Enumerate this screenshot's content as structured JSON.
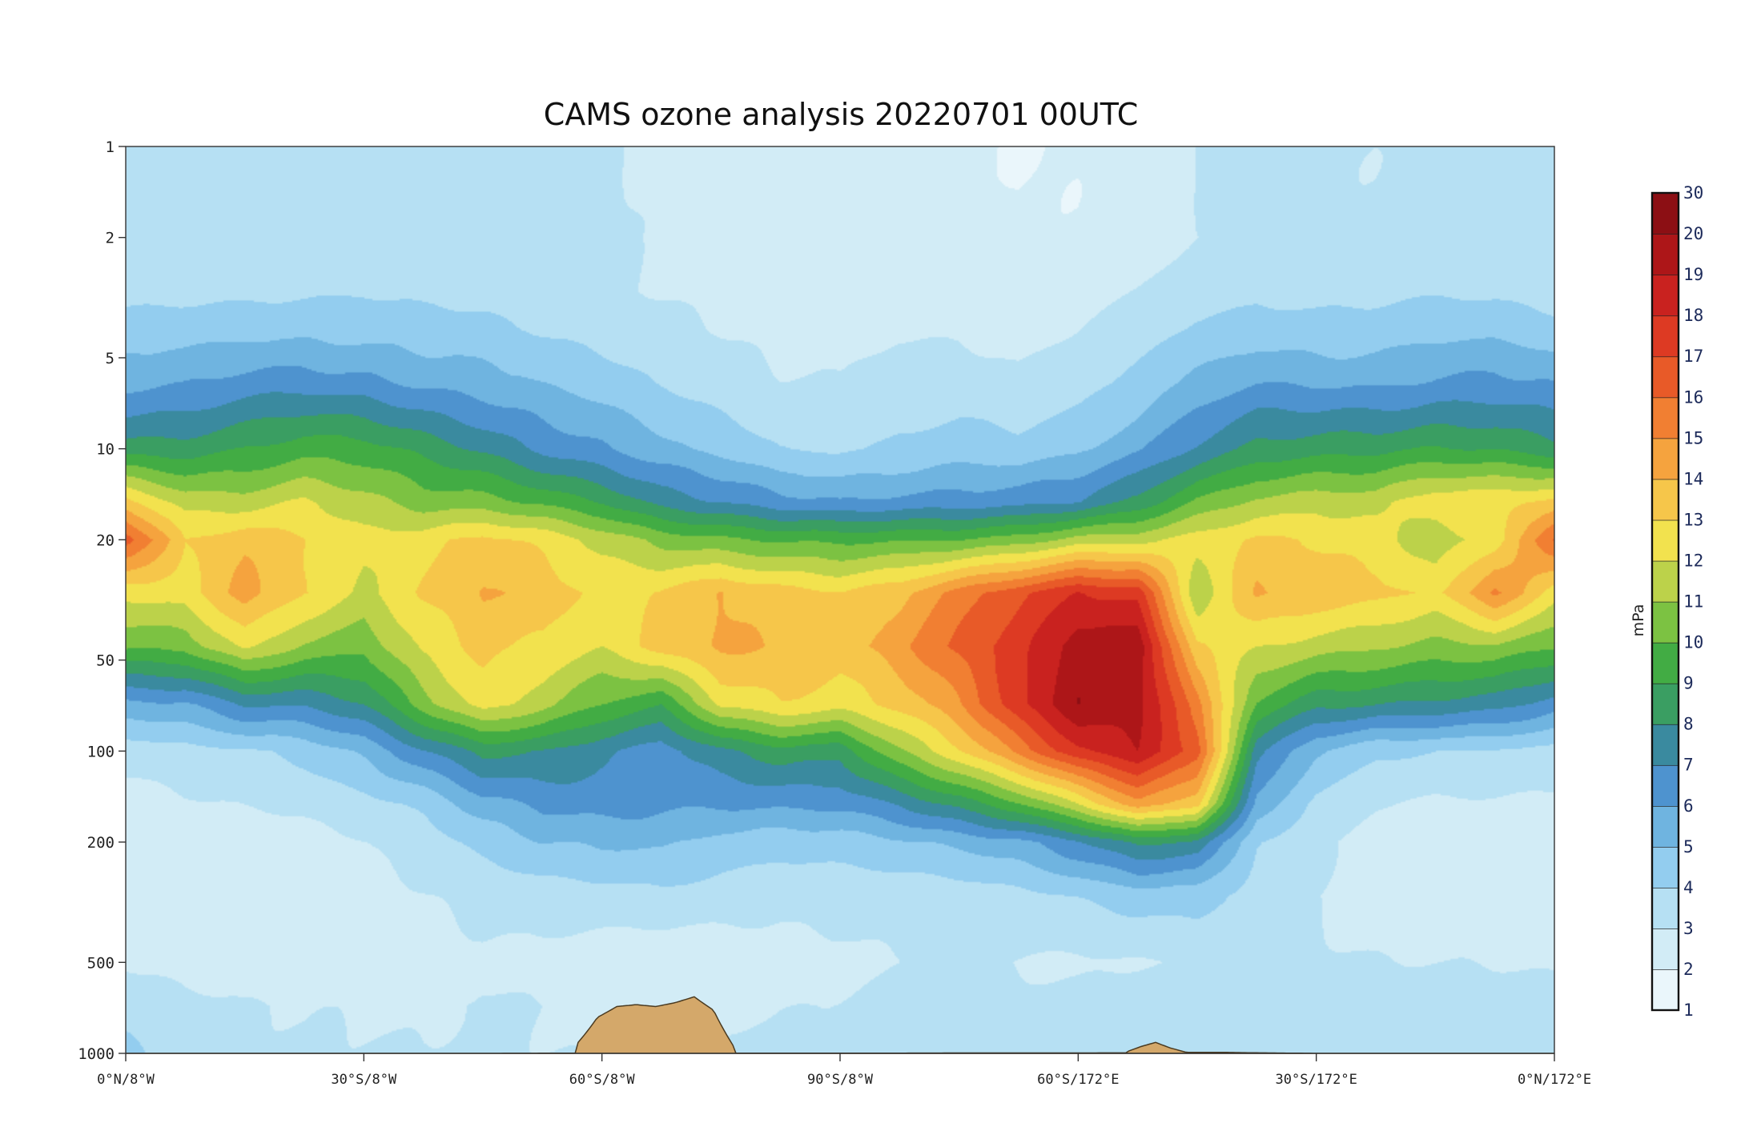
{
  "chart_data": {
    "type": "heatmap",
    "title": "CAMS ozone analysis 20220701 00UTC",
    "xlabel": "",
    "ylabel": "",
    "y_scale": "log",
    "y_inverted": true,
    "ylim": [
      1000,
      1
    ],
    "y_ticks": [
      "1",
      "2",
      "5",
      "10",
      "20",
      "50",
      "100",
      "200",
      "500",
      "1000"
    ],
    "y_tick_values": [
      1,
      2,
      5,
      10,
      20,
      50,
      100,
      200,
      500,
      1000
    ],
    "x_ticks": [
      "0°N/8°W",
      "30°S/8°W",
      "60°S/8°W",
      "90°S/8°W",
      "60°S/172°E",
      "30°S/172°E",
      "0°N/172°E"
    ],
    "grid": false,
    "colorbar": {
      "unit": "mPa",
      "levels": [
        "1",
        "2",
        "3",
        "4",
        "5",
        "6",
        "7",
        "8",
        "9",
        "10",
        "11",
        "12",
        "13",
        "14",
        "15",
        "16",
        "17",
        "18",
        "19",
        "20",
        "30"
      ],
      "colors": [
        "#eaf6fb",
        "#d2ecf6",
        "#b6e0f3",
        "#93cdef",
        "#6fb4e0",
        "#4e93cf",
        "#3a8a9f",
        "#3a9e62",
        "#42ac44",
        "#7cc242",
        "#bcd24a",
        "#f2e24e",
        "#f6c64a",
        "#f5a33e",
        "#f17f32",
        "#e85a28",
        "#dd3a23",
        "#c9221f",
        "#ad1618",
        "#8c0f14"
      ]
    },
    "topography": {
      "color": "#d4a86a",
      "pressure_profile_hpa": [
        [
          0,
          1000
        ],
        [
          6,
          1000
        ],
        [
          7,
          999
        ],
        [
          12,
          998
        ],
        [
          13,
          998
        ],
        [
          14,
          997
        ],
        [
          16,
          997
        ],
        [
          17,
          996
        ],
        [
          17.5,
          993
        ],
        [
          18,
          992
        ],
        [
          18.5,
          993
        ],
        [
          19,
          996
        ],
        [
          19.5,
          998
        ],
        [
          20,
          1000
        ],
        [
          24,
          1000
        ]
      ],
      "ridges": [
        {
          "x_from": 7.6,
          "x_to": 10.2,
          "top_hpa": [
            920,
            760,
            700,
            690,
            700,
            680,
            650,
            720,
            940
          ]
        },
        {
          "x_from": 16.8,
          "x_to": 17.8,
          "top_hpa": [
            990,
            950,
            920,
            960,
            990
          ]
        }
      ]
    },
    "field_mpa": [
      [
        3.2,
        3.2,
        3.2,
        3.4,
        3.4,
        3.3,
        3.3,
        3.1,
        3.1,
        2.8,
        2.5,
        2.2,
        2.1,
        2.3,
        2.2,
        2.0,
        2.1,
        2.4,
        3.0,
        3.2,
        3.1,
        3.1,
        3.2,
        3.2,
        3.2
      ],
      [
        3.6,
        3.7,
        3.8,
        3.9,
        3.9,
        3.7,
        3.6,
        3.3,
        3.2,
        3.0,
        2.7,
        2.4,
        2.3,
        2.6,
        2.6,
        2.4,
        2.6,
        3.0,
        3.5,
        3.8,
        3.7,
        3.7,
        3.8,
        3.8,
        3.6
      ],
      [
        4.3,
        4.4,
        4.6,
        4.7,
        4.7,
        4.4,
        4.2,
        3.8,
        3.6,
        3.3,
        3.0,
        2.7,
        2.6,
        2.9,
        2.9,
        2.7,
        3.0,
        3.5,
        4.1,
        4.5,
        4.4,
        4.4,
        4.6,
        4.6,
        4.3
      ],
      [
        5.8,
        5.9,
        6.2,
        6.4,
        6.3,
        5.9,
        5.5,
        4.9,
        4.4,
        3.9,
        3.5,
        3.1,
        3.0,
        3.3,
        3.4,
        3.2,
        3.6,
        4.3,
        5.2,
        5.8,
        5.8,
        5.9,
        6.2,
        6.2,
        5.8
      ],
      [
        8.4,
        8.6,
        9.1,
        9.5,
        9.3,
        8.6,
        7.9,
        6.9,
        6.1,
        5.2,
        4.6,
        4.0,
        3.9,
        4.2,
        4.4,
        4.2,
        4.8,
        5.9,
        7.3,
        8.3,
        8.4,
        8.6,
        9.1,
        9.1,
        8.4
      ],
      [
        13.2,
        11.5,
        11.6,
        12.3,
        11.4,
        10.4,
        10.3,
        9.8,
        9.1,
        7.7,
        6.9,
        6.2,
        6.0,
        6.4,
        6.6,
        6.6,
        6.9,
        8.2,
        10.2,
        11.4,
        11.7,
        11.5,
        12.6,
        12.8,
        13.4
      ],
      [
        16.6,
        12.8,
        13.6,
        13.2,
        12.4,
        12.6,
        13.2,
        12.6,
        11.7,
        10.8,
        10.3,
        9.8,
        9.6,
        9.8,
        10.1,
        10.6,
        11.4,
        11.5,
        12.3,
        13.2,
        13.1,
        12.6,
        11.2,
        12.4,
        16.0
      ],
      [
        12.4,
        12.6,
        14.3,
        12.9,
        11.8,
        13.2,
        14.2,
        13.5,
        12.5,
        13.1,
        14.2,
        13.6,
        13.1,
        13.6,
        15.3,
        16.8,
        18.2,
        17.7,
        11.1,
        14.0,
        13.6,
        13.5,
        12.8,
        15.2,
        12.4
      ],
      [
        10.2,
        10.5,
        12.4,
        10.8,
        10.1,
        12.2,
        13.4,
        13.0,
        12.1,
        13.3,
        14.1,
        13.9,
        13.6,
        14.8,
        16.2,
        17.4,
        19.6,
        19.9,
        13.2,
        12.1,
        11.4,
        11.0,
        10.8,
        11.0,
        10.2
      ],
      [
        5.6,
        5.8,
        7.2,
        7.3,
        8.0,
        10.4,
        12.4,
        11.4,
        10.1,
        9.2,
        12.1,
        12.8,
        12.4,
        13.4,
        15.0,
        17.8,
        19.8,
        19.2,
        15.5,
        10.0,
        8.4,
        8.0,
        7.6,
        7.4,
        6.6
      ],
      [
        3.4,
        3.6,
        3.8,
        4.3,
        5.4,
        7.0,
        8.2,
        7.9,
        7.2,
        6.6,
        7.9,
        8.6,
        8.2,
        10.8,
        12.9,
        15.5,
        17.9,
        18.8,
        16.4,
        7.4,
        5.2,
        4.3,
        4.0,
        3.8,
        3.6
      ],
      [
        2.6,
        2.9,
        3.0,
        3.2,
        3.6,
        4.3,
        5.7,
        6.2,
        6.3,
        6.1,
        6.2,
        6.4,
        6.3,
        7.0,
        8.2,
        9.8,
        12.1,
        14.8,
        13.2,
        5.6,
        3.7,
        3.1,
        2.9,
        2.9,
        2.7
      ],
      [
        2.6,
        2.2,
        2.2,
        2.5,
        2.9,
        3.4,
        4.4,
        5.1,
        5.2,
        5.1,
        4.6,
        4.4,
        4.6,
        4.9,
        5.2,
        5.6,
        6.8,
        8.4,
        7.9,
        4.0,
        3.2,
        2.4,
        2.3,
        2.4,
        2.5
      ],
      [
        2.5,
        2.3,
        2.1,
        2.3,
        2.6,
        2.9,
        3.2,
        3.5,
        3.7,
        3.8,
        3.5,
        3.2,
        3.3,
        3.4,
        3.5,
        3.7,
        4.0,
        4.4,
        4.5,
        3.6,
        3.0,
        2.5,
        2.3,
        2.3,
        2.4
      ],
      [
        2.9,
        2.6,
        2.5,
        2.5,
        2.6,
        2.7,
        2.8,
        2.6,
        2.4,
        2.3,
        2.4,
        2.6,
        2.7,
        2.9,
        3.2,
        3.0,
        2.9,
        2.9,
        3.0,
        3.1,
        3.2,
        3.1,
        3.0,
        2.9,
        2.8
      ],
      [
        3.8,
        3.3,
        3.0,
        2.9,
        2.9,
        2.9,
        3.2,
        3.0,
        2.5,
        2.6,
        2.7,
        3.0,
        3.1,
        3.3,
        3.4,
        3.2,
        3.3,
        3.6,
        3.9,
        3.6,
        3.4,
        3.5,
        3.6,
        3.4,
        3.3
      ],
      [
        4.2,
        3.7,
        3.2,
        3.0,
        3.0,
        3.0,
        3.2,
        3.1,
        3.0,
        3.0,
        3.2,
        3.3,
        3.3,
        3.4,
        3.4,
        3.4,
        3.5,
        3.6,
        3.7,
        3.6,
        3.6,
        3.7,
        3.8,
        3.7,
        3.6
      ]
    ],
    "field_x_positions": [
      0,
      1,
      2,
      3,
      4,
      5,
      6,
      7,
      8,
      9,
      10,
      11,
      12,
      13,
      14,
      15,
      16,
      17,
      18,
      19,
      20,
      21,
      22,
      23,
      24
    ],
    "field_x_note": "",
    "field_pressure_hpa": [
      2,
      3,
      4,
      6,
      10,
      15,
      20,
      30,
      45,
      70,
      100,
      150,
      200,
      300,
      500,
      700,
      1000
    ]
  }
}
